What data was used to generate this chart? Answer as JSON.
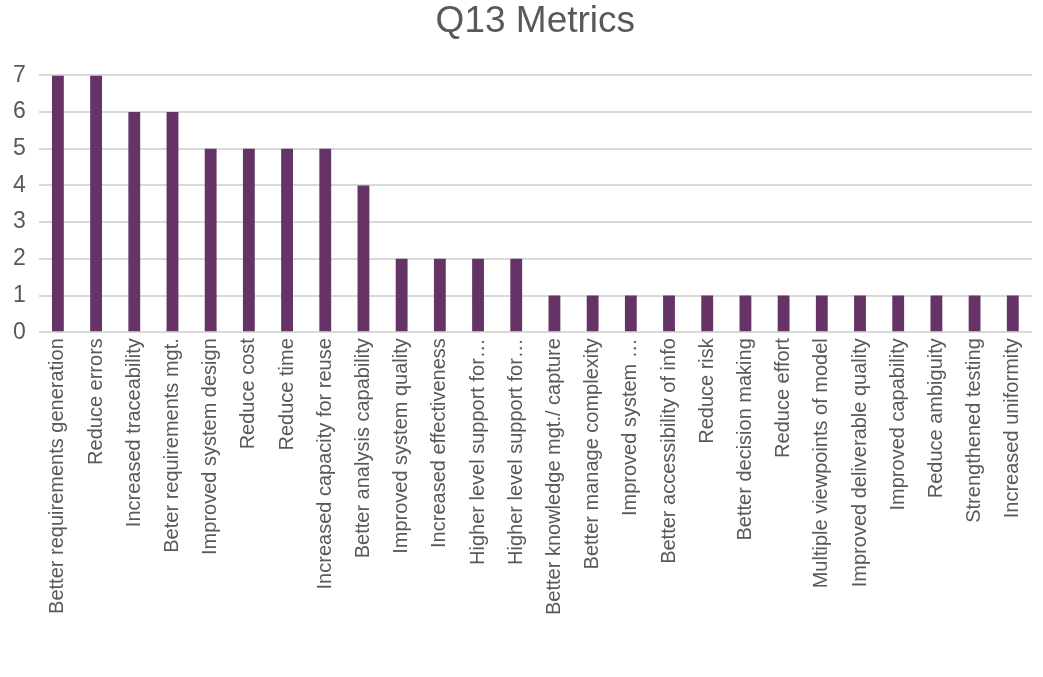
{
  "chart_data": {
    "type": "bar",
    "title": "Q13 Metrics",
    "categories": [
      "Better requirements generation",
      "Reduce errors",
      "Increased traceability",
      "Beter requirements mgt.",
      "Improved system design",
      "Reduce cost",
      "Reduce time",
      "Increased capacity for reuse",
      "Better analysis capability",
      "Improved system quality",
      "Increased effectiveness",
      "Higher level support for…",
      "Higher level support for…",
      "Better knowledge mgt./ capture",
      "Better manage complexity",
      "Improved system …",
      "Better accessibility of info",
      "Reduce risk",
      "Better decision making",
      "Reduce effort",
      "Multiple viewpoints of model",
      "Improved deliverable quality",
      "Improved capability",
      "Reduce ambiguity",
      "Strengthened testing",
      "Increased uniformity"
    ],
    "values": [
      7,
      7,
      6,
      6,
      5,
      5,
      5,
      5,
      4,
      2,
      2,
      2,
      2,
      1,
      1,
      1,
      1,
      1,
      1,
      1,
      1,
      1,
      1,
      1,
      1,
      1
    ],
    "color": "#663366",
    "ylim": [
      0,
      7
    ],
    "yticks": [
      0,
      1,
      2,
      3,
      4,
      5,
      6,
      7
    ],
    "grid": "y",
    "legend": false
  }
}
